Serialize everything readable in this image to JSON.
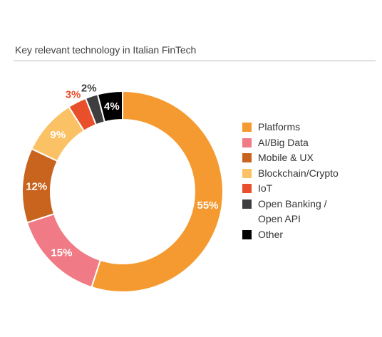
{
  "title": "Key relevant technology in Italian FinTech",
  "chart_data": {
    "type": "pie",
    "title": "Key relevant technology in Italian FinTech",
    "categories": [
      "Platforms",
      "AI/Big Data",
      "Mobile & UX",
      "Blockchain/Crypto",
      "IoT",
      "Open Banking /\nOpen API",
      "Other"
    ],
    "values": [
      55,
      15,
      12,
      9,
      3,
      2,
      4
    ],
    "value_labels": [
      "55%",
      "15%",
      "12%",
      "9%",
      "3%",
      "2%",
      "4%"
    ],
    "colors": [
      "#f59a31",
      "#f07a85",
      "#c8641e",
      "#fbc165",
      "#e8502b",
      "#3e3e40",
      "#000000"
    ],
    "label_colors": [
      "#ffffff",
      "#ffffff",
      "#ffffff",
      "#ffffff",
      "#e8502b",
      "#3e3e40",
      "#ffffff"
    ],
    "donut": true,
    "legend_position": "right"
  }
}
